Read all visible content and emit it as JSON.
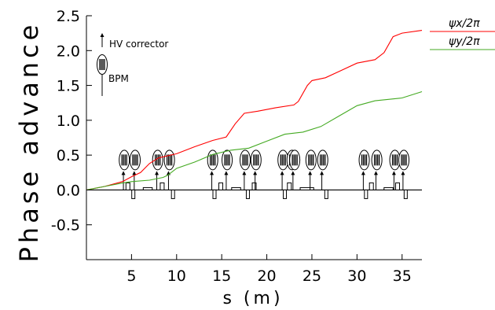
{
  "chart_data": {
    "type": "line",
    "xlabel": "s (m)",
    "ylabel": "Phase advance",
    "xlim": [
      0,
      37.2
    ],
    "ylim": [
      -1.0,
      2.5
    ],
    "xticks": [
      5,
      10,
      15,
      20,
      25,
      30,
      35
    ],
    "yticks": [
      2.5,
      2.0,
      1.5,
      1.0,
      0.5,
      0.0,
      -0.5
    ],
    "ytick_labels": [
      "2.5",
      "2.0",
      "1.5",
      "1.0",
      "0.5",
      "0.0",
      "-0.5"
    ],
    "grid": false,
    "legend_position": "outside-top-right",
    "series": [
      {
        "name": "ψx/2π",
        "color": "#ff0000",
        "x": [
          0,
          2,
          4,
          5,
          6,
          7,
          8,
          10,
          12,
          14,
          15.5,
          16.5,
          17.5,
          19,
          21,
          23,
          23.5,
          24.5,
          25,
          26.5,
          28,
          30,
          32,
          33,
          34,
          35,
          37.2
        ],
        "y": [
          0,
          0.05,
          0.12,
          0.19,
          0.25,
          0.38,
          0.46,
          0.52,
          0.62,
          0.71,
          0.76,
          0.95,
          1.1,
          1.13,
          1.18,
          1.22,
          1.27,
          1.5,
          1.57,
          1.61,
          1.7,
          1.82,
          1.87,
          1.97,
          2.2,
          2.25,
          2.29
        ]
      },
      {
        "name": "ψy/2π",
        "color": "#44aa22",
        "x": [
          0,
          2,
          4,
          5,
          7,
          8.5,
          9,
          10,
          12,
          14,
          16,
          18,
          20,
          22,
          24,
          26,
          28,
          30,
          32,
          35,
          37.2
        ],
        "y": [
          0,
          0.05,
          0.1,
          0.12,
          0.14,
          0.18,
          0.21,
          0.31,
          0.4,
          0.51,
          0.57,
          0.6,
          0.7,
          0.8,
          0.83,
          0.91,
          1.06,
          1.21,
          1.28,
          1.32,
          1.41
        ]
      }
    ],
    "bpm_positions": [
      4.2,
      5.4,
      7.9,
      9.2,
      14.0,
      15.6,
      17.6,
      18.8,
      21.8,
      22.8,
      23.1,
      24.9,
      26.2,
      30.8,
      32.2,
      34.2,
      35.2
    ],
    "corrector_positions": [
      4.1,
      5.3,
      7.8,
      9.1,
      13.9,
      15.5,
      17.5,
      18.7,
      21.7,
      22.9,
      24.8,
      26.1,
      30.7,
      32.1,
      34.1,
      35.1
    ],
    "quadrupole_positions": [
      {
        "s": 4.6,
        "sign": 1
      },
      {
        "s": 5.2,
        "sign": -1
      },
      {
        "s": 8.4,
        "sign": 1
      },
      {
        "s": 9.6,
        "sign": -1
      },
      {
        "s": 14.2,
        "sign": -1
      },
      {
        "s": 14.9,
        "sign": 1
      },
      {
        "s": 17.9,
        "sign": -1
      },
      {
        "s": 18.6,
        "sign": 1
      },
      {
        "s": 22.0,
        "sign": -1
      },
      {
        "s": 22.5,
        "sign": 1
      },
      {
        "s": 26.6,
        "sign": -1
      },
      {
        "s": 31.0,
        "sign": -1
      },
      {
        "s": 31.6,
        "sign": 1
      },
      {
        "s": 34.5,
        "sign": 1
      },
      {
        "s": 35.4,
        "sign": -1
      }
    ],
    "dipole_positions": [
      [
        6.3,
        7.3
      ],
      [
        16.1,
        17.1
      ],
      [
        23.7,
        25.2
      ],
      [
        33.0,
        34.0
      ]
    ],
    "beamline_legend": {
      "corrector_label": "HV corrector",
      "bpm_label": "BPM"
    }
  }
}
